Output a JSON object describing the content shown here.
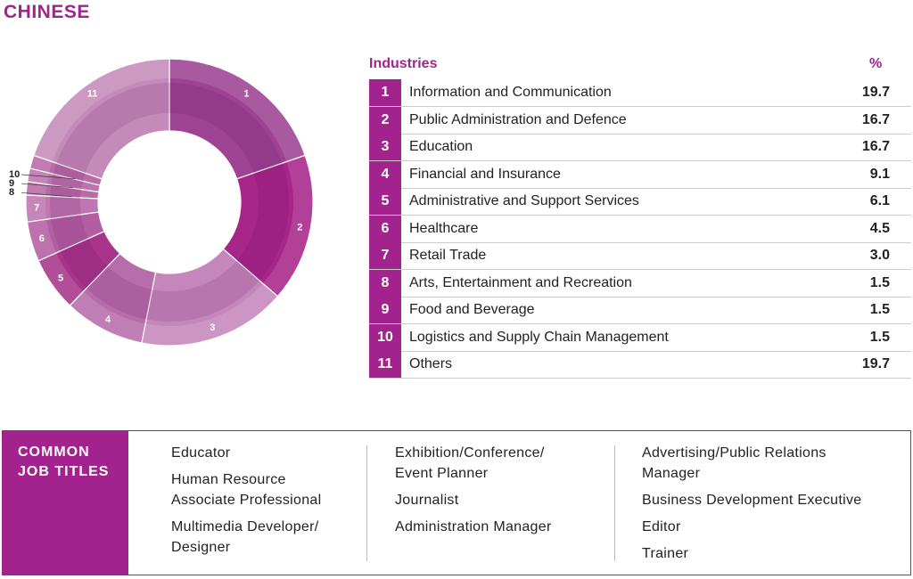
{
  "title": "CHINESE",
  "chart_data": {
    "type": "pie",
    "categories": [
      "1",
      "2",
      "3",
      "4",
      "5",
      "6",
      "7",
      "8",
      "9",
      "10",
      "11"
    ],
    "values": [
      19.7,
      16.7,
      16.7,
      9.1,
      6.1,
      4.5,
      3.0,
      1.5,
      1.5,
      1.5,
      19.7
    ],
    "value_labels": [
      "19.7",
      "16.7",
      "16.7",
      "9.1",
      "6.1",
      "4.5",
      "3.0",
      "1.5",
      "1.5",
      "1.5",
      "19.7"
    ],
    "colors": [
      "#9e4393",
      "#a8268a",
      "#c587bb",
      "#b76daa",
      "#a8358a",
      "#b45ea2",
      "#bf76b1",
      "#b96aa8",
      "#bd74ad",
      "#b96aa8",
      "#c48bba"
    ]
  },
  "table": {
    "header": "Industries",
    "value_header": "%",
    "names": [
      "Information and Communication",
      "Public Administration and Defence",
      "Education",
      "Financial and Insurance",
      "Administrative and Support Services",
      "Healthcare",
      "Retail Trade",
      "Arts, Entertainment and Recreation",
      "Food and Beverage",
      "Logistics and Supply Chain Management",
      "Others"
    ]
  },
  "job_titles": {
    "heading": [
      "COMMON",
      "JOB TITLES"
    ],
    "columns": [
      [
        [
          "Educator"
        ],
        [
          "Human Resource",
          "Associate Professional"
        ],
        [
          "Multimedia Developer/",
          "Designer"
        ]
      ],
      [
        [
          "Exhibition/Conference/",
          "Event Planner"
        ],
        [
          "Journalist"
        ],
        [
          "Administration Manager"
        ]
      ],
      [
        [
          "Advertising/Public Relations",
          "Manager"
        ],
        [
          "Business Development Executive"
        ],
        [
          "Editor"
        ],
        [
          "Trainer"
        ]
      ]
    ]
  }
}
